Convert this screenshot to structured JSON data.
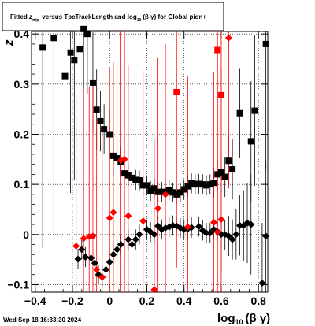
{
  "chart_data": {
    "type": "scatter",
    "title": "Fitted",
    "title_z": "z",
    "title_z_sub": "π/p",
    "title_mid": "versus TpcTrackLength and log",
    "title_log_sub": "10",
    "title_end": "(β γ) for Global pion+",
    "xlabel_main": "log",
    "xlabel_sub": "10",
    "xlabel_end": "(β γ)",
    "ylabel": "z",
    "xlim": [
      -0.42,
      0.85
    ],
    "ylim": [
      -0.115,
      0.405
    ],
    "xticks": [
      -0.4,
      -0.2,
      0,
      0.2,
      0.4,
      0.6,
      0.8
    ],
    "xtick_labels": [
      "−0.4",
      "−0.2",
      "0",
      "0.2",
      "0.4",
      "0.6",
      "0.8"
    ],
    "yticks": [
      -0.1,
      0,
      0.1,
      0.2,
      0.3,
      0.4
    ],
    "ytick_labels": [
      "−0.1",
      "0",
      "0.1",
      "0.2",
      "0.3",
      "0.4"
    ],
    "grid": true,
    "footer": "Wed Sep 18 16:33:30 2024",
    "series": [
      {
        "marker": "square",
        "color": "#000000",
        "points": [
          [
            -0.36,
            0.373,
            0.4
          ],
          [
            -0.3,
            0.392,
            0.4
          ],
          [
            -0.24,
            0.316,
            0.32
          ],
          [
            -0.21,
            0.363,
            0.28
          ],
          [
            -0.19,
            0.348,
            0.24
          ],
          [
            -0.16,
            0.37,
            0.2
          ],
          [
            -0.14,
            0.41,
            0.18
          ],
          [
            -0.12,
            0.4,
            0.12
          ],
          [
            -0.09,
            0.303,
            0.1
          ],
          [
            -0.07,
            0.249,
            0.08
          ],
          [
            -0.05,
            0.226,
            0.06
          ],
          [
            -0.03,
            0.21,
            0.05
          ],
          [
            0.0,
            0.2,
            0.05
          ],
          [
            0.02,
            0.157,
            0.04
          ],
          [
            0.04,
            0.152,
            0.03
          ],
          [
            0.06,
            0.145,
            0.03
          ],
          [
            0.08,
            0.122,
            0.03
          ],
          [
            0.1,
            0.118,
            0.02
          ],
          [
            0.12,
            0.113,
            0.02
          ],
          [
            0.14,
            0.109,
            0.02
          ],
          [
            0.16,
            0.108,
            0.02
          ],
          [
            0.18,
            0.098,
            0.02
          ],
          [
            0.2,
            0.098,
            0.02
          ],
          [
            0.22,
            0.087,
            0.02
          ],
          [
            0.24,
            0.092,
            0.02
          ],
          [
            0.26,
            0.085,
            0.02
          ],
          [
            0.28,
            0.085,
            0.02
          ],
          [
            0.3,
            0.085,
            0.02
          ],
          [
            0.32,
            0.088,
            0.02
          ],
          [
            0.34,
            0.084,
            0.02
          ],
          [
            0.36,
            0.08,
            0.02
          ],
          [
            0.38,
            0.084,
            0.02
          ],
          [
            0.4,
            0.09,
            0.02
          ],
          [
            0.42,
            0.096,
            0.02
          ],
          [
            0.44,
            0.102,
            0.02
          ],
          [
            0.46,
            0.1,
            0.02
          ],
          [
            0.48,
            0.101,
            0.02
          ],
          [
            0.5,
            0.1,
            0.02
          ],
          [
            0.52,
            0.098,
            0.02
          ],
          [
            0.54,
            0.1,
            0.02
          ],
          [
            0.56,
            0.103,
            0.03
          ],
          [
            0.58,
            0.12,
            0.03
          ],
          [
            0.6,
            0.124,
            0.04
          ],
          [
            0.62,
            0.115,
            0.04
          ],
          [
            0.64,
            0.147,
            0.05
          ],
          [
            0.66,
            0.13,
            0.06
          ],
          [
            0.7,
            0.242,
            0.09
          ],
          [
            0.76,
            0.186,
            0.12
          ],
          [
            0.78,
            0.247,
            0.15
          ],
          [
            0.84,
            0.38,
            0.25
          ]
        ]
      },
      {
        "marker": "diamond",
        "color": "#000000",
        "points": [
          [
            -0.17,
            -0.049,
            0.02
          ],
          [
            -0.15,
            -0.03,
            0.02
          ],
          [
            -0.13,
            -0.045,
            0.02
          ],
          [
            -0.1,
            -0.047,
            0.02
          ],
          [
            -0.08,
            -0.057,
            0.02
          ],
          [
            -0.06,
            -0.08,
            0.02
          ],
          [
            -0.04,
            -0.085,
            0.02
          ],
          [
            -0.02,
            -0.07,
            0.02
          ],
          [
            0.0,
            -0.055,
            0.02
          ],
          [
            0.02,
            -0.04,
            0.02
          ],
          [
            0.04,
            -0.03,
            0.02
          ],
          [
            0.06,
            -0.02,
            0.02
          ],
          [
            0.1,
            -0.01,
            0.02
          ],
          [
            0.12,
            -0.02,
            0.02
          ],
          [
            0.14,
            -0.01,
            0.02
          ],
          [
            0.16,
            0.0,
            0.02
          ],
          [
            0.2,
            0.01,
            0.02
          ],
          [
            0.22,
            0.005,
            0.02
          ],
          [
            0.24,
            0.0,
            0.02
          ],
          [
            0.26,
            0.017,
            0.02
          ],
          [
            0.28,
            0.01,
            0.02
          ],
          [
            0.3,
            0.013,
            0.02
          ],
          [
            0.32,
            0.015,
            0.02
          ],
          [
            0.34,
            0.018,
            0.02
          ],
          [
            0.36,
            0.017,
            0.02
          ],
          [
            0.38,
            0.013,
            0.02
          ],
          [
            0.4,
            0.01,
            0.02
          ],
          [
            0.42,
            0.011,
            0.02
          ],
          [
            0.44,
            0.014,
            0.02
          ],
          [
            0.48,
            0.016,
            0.02
          ],
          [
            0.5,
            0.008,
            0.02
          ],
          [
            0.52,
            0.003,
            0.02
          ],
          [
            0.54,
            0.003,
            0.02
          ],
          [
            0.56,
            0.01,
            0.02
          ],
          [
            0.58,
            0.006,
            0.02
          ],
          [
            0.6,
            0.0,
            0.03
          ],
          [
            0.62,
            0.0,
            0.03
          ],
          [
            0.64,
            -0.003,
            0.04
          ],
          [
            0.66,
            -0.01,
            0.04
          ],
          [
            0.68,
            0.0,
            0.05
          ],
          [
            0.7,
            0.018,
            0.06
          ],
          [
            0.72,
            0.018,
            0.07
          ],
          [
            0.74,
            0.023,
            0.08
          ],
          [
            0.76,
            0.02,
            0.1
          ],
          [
            0.82,
            -0.097,
            0.12
          ],
          [
            0.84,
            -0.003,
            0.15
          ]
        ]
      },
      {
        "marker": "square",
        "color": "#ff0000",
        "points": [
          [
            0.36,
            0.284,
            0.35
          ],
          [
            0.58,
            0.368,
            0.35
          ],
          [
            0.6,
            0.278,
            0.35
          ]
        ]
      },
      {
        "marker": "diamond",
        "color": "#ff0000",
        "points": [
          [
            -0.18,
            -0.023,
            0.3
          ],
          [
            -0.14,
            -0.008,
            0.3
          ],
          [
            -0.11,
            -0.004,
            0.3
          ],
          [
            -0.09,
            -0.003,
            0.3
          ],
          [
            -0.07,
            -0.07,
            0.3
          ],
          [
            -0.04,
            -0.085,
            0.3
          ],
          [
            0.0,
            0.033,
            0.3
          ],
          [
            0.02,
            0.044,
            0.3
          ],
          [
            0.06,
            0.148,
            0.3
          ],
          [
            0.08,
            0.15,
            0.3
          ],
          [
            0.1,
            0.037,
            0.3
          ],
          [
            0.18,
            0.027,
            0.3
          ],
          [
            0.24,
            -0.11,
            0.3
          ],
          [
            0.26,
            0.052,
            0.3
          ],
          [
            0.3,
            0.08,
            0.3
          ],
          [
            0.42,
            0.015,
            0.3
          ],
          [
            0.56,
            0.024,
            0.3
          ],
          [
            0.58,
            0.005,
            0.3
          ],
          [
            0.6,
            0.03,
            0.3
          ],
          [
            0.64,
            0.392,
            0.3
          ]
        ]
      }
    ]
  }
}
